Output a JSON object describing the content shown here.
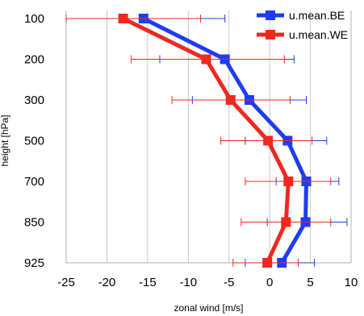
{
  "chart_data": {
    "type": "line",
    "title": "",
    "xlabel": "zonal wind [m/s]",
    "ylabel": "height [hPa]",
    "xlim": [
      -25,
      10
    ],
    "x_ticks": [
      "-25",
      "-20",
      "-15",
      "-10",
      "-5",
      "0",
      "5",
      "10"
    ],
    "categories": [
      "100",
      "200",
      "300",
      "500",
      "700",
      "850",
      "925"
    ],
    "grid": "vertical",
    "legend": "top-right",
    "series": [
      {
        "name": "u.mean.BE",
        "color": "#1f3cf0",
        "values": [
          -15.5,
          -5.5,
          -2.5,
          2.2,
          4.5,
          4.4,
          1.5
        ],
        "error_low": [
          -25,
          -13.5,
          -9.5,
          -3,
          0.8,
          -0.3,
          -3
        ],
        "error_high": [
          -5.5,
          3,
          4.5,
          7,
          8.5,
          9.5,
          5.5
        ]
      },
      {
        "name": "u.mean.WE",
        "color": "#f0281e",
        "values": [
          -18,
          -7.8,
          -4.8,
          -0.2,
          2.3,
          2.0,
          -0.3
        ],
        "error_low": [
          -25,
          -17,
          -12,
          -6,
          -3,
          -3.5,
          -4.5
        ],
        "error_high": [
          -8.5,
          1.8,
          2.5,
          5.2,
          7.5,
          7.5,
          3.5
        ]
      }
    ]
  }
}
